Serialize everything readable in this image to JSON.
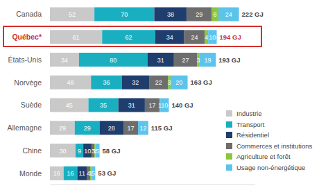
{
  "chart_data": {
    "type": "bar",
    "orientation": "horizontal",
    "stacked": true,
    "data_labels": true,
    "tick_labels": "y",
    "grid": false,
    "legend": "bottom-right",
    "categories": [
      "Canada",
      "Québec*",
      "États-Unis",
      "Norvège",
      "Suède",
      "Allemagne",
      "Chine",
      "Monde"
    ],
    "xlim": [
      0,
      240
    ],
    "series": [
      {
        "name": "Industrie",
        "color": "#c9c9c9",
        "values": [
          52,
          61,
          34,
          48,
          45,
          29,
          30,
          16
        ]
      },
      {
        "name": "Transport",
        "color": "#1aafc0",
        "values": [
          70,
          62,
          80,
          36,
          35,
          29,
          9,
          16
        ]
      },
      {
        "name": "Résidentiel",
        "color": "#1f3d6d",
        "values": [
          38,
          34,
          31,
          32,
          31,
          28,
          10,
          11
        ]
      },
      {
        "name": "Commerces et institutions",
        "color": "#6d6d6d",
        "values": [
          29,
          24,
          27,
          22,
          17,
          17,
          3,
          4
        ]
      },
      {
        "name": "Agriculture et forêt",
        "color": "#8cc63f",
        "values": [
          8,
          4,
          3,
          3,
          1,
          null,
          1,
          1
        ]
      },
      {
        "name": "Usage non-énergétique",
        "color": "#5cc3ea",
        "values": [
          24,
          10,
          19,
          20,
          10,
          12,
          5,
          5
        ]
      }
    ],
    "total_labels": [
      "222 GJ",
      "194 GJ",
      "193 GJ",
      "163 GJ",
      "140 GJ",
      "115 GJ",
      "58 GJ",
      "53 GJ"
    ]
  }
}
